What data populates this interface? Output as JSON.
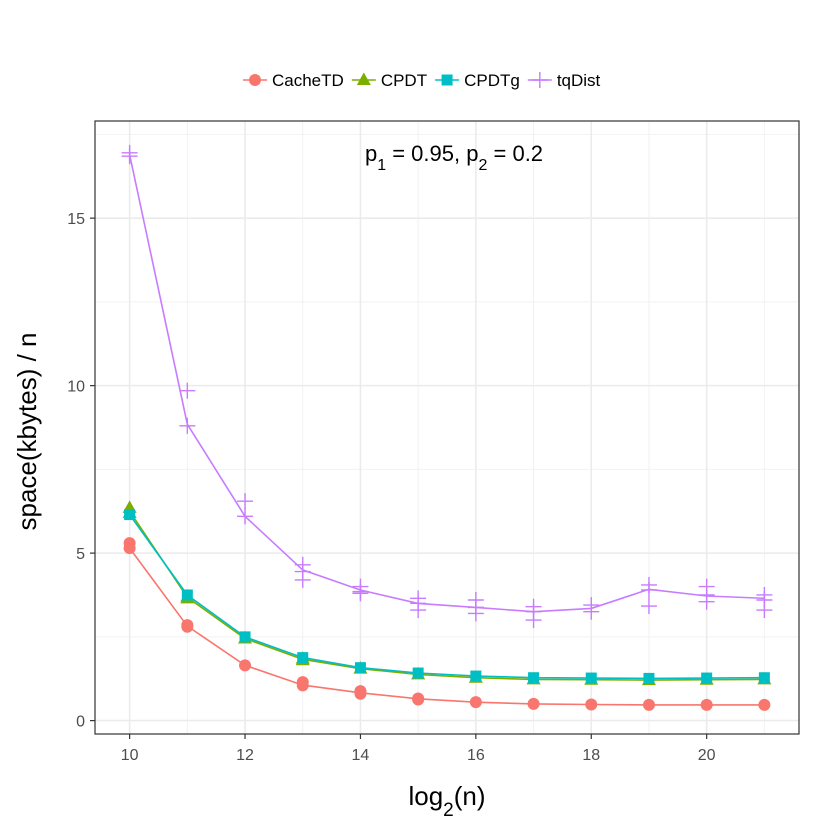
{
  "chart_data": {
    "type": "line",
    "annotation": {
      "p1_label": "p",
      "p1_sub": "1",
      "p1_value": " = 0.95, ",
      "p2_label": "p",
      "p2_sub": "2",
      "p2_value": " = 0.2"
    },
    "xlabel": {
      "base": "log",
      "sub": "2",
      "rest": "(n)"
    },
    "ylabel": "space(kbytes) / n",
    "xlim": [
      9.4,
      21.6
    ],
    "ylim": [
      -0.4,
      17.9
    ],
    "xticks": [
      10,
      12,
      14,
      16,
      18,
      20
    ],
    "yticks": [
      0,
      5,
      10,
      15
    ],
    "grid": true,
    "legend_position": "top",
    "series": [
      {
        "name": "CacheTD",
        "color": "#F8766D",
        "marker": "circle",
        "x": [
          10,
          11,
          12,
          13,
          14,
          15,
          16,
          17,
          18,
          19,
          20,
          21
        ],
        "mean": [
          5.15,
          2.82,
          1.65,
          1.06,
          0.83,
          0.65,
          0.55,
          0.5,
          0.48,
          0.47,
          0.47,
          0.47
        ],
        "points": [
          [
            10,
            5.3
          ],
          [
            10,
            5.15
          ],
          [
            11,
            2.85
          ],
          [
            11,
            2.8
          ],
          [
            12,
            1.65
          ],
          [
            13,
            1.15
          ],
          [
            13,
            1.05
          ],
          [
            14,
            0.88
          ],
          [
            14,
            0.8
          ],
          [
            15,
            0.66
          ],
          [
            15,
            0.63
          ],
          [
            16,
            0.55
          ],
          [
            17,
            0.5
          ],
          [
            18,
            0.48
          ],
          [
            19,
            0.47
          ],
          [
            20,
            0.47
          ],
          [
            21,
            0.47
          ]
        ]
      },
      {
        "name": "CPDT",
        "color": "#7CAE00",
        "marker": "triangle",
        "x": [
          10,
          11,
          12,
          13,
          14,
          15,
          16,
          17,
          18,
          19,
          20,
          21
        ],
        "mean": [
          6.25,
          3.68,
          2.45,
          1.83,
          1.55,
          1.38,
          1.28,
          1.23,
          1.22,
          1.21,
          1.22,
          1.23
        ],
        "points": [
          [
            10,
            6.35
          ],
          [
            10,
            6.2
          ],
          [
            11,
            3.7
          ],
          [
            11,
            3.65
          ],
          [
            12,
            2.45
          ],
          [
            13,
            1.85
          ],
          [
            13,
            1.8
          ],
          [
            14,
            1.55
          ],
          [
            15,
            1.38
          ],
          [
            16,
            1.28
          ],
          [
            17,
            1.23
          ],
          [
            18,
            1.22
          ],
          [
            19,
            1.21
          ],
          [
            20,
            1.22
          ],
          [
            21,
            1.23
          ]
        ]
      },
      {
        "name": "CPDTg",
        "color": "#00BFC4",
        "marker": "square",
        "x": [
          10,
          11,
          12,
          13,
          14,
          15,
          16,
          17,
          18,
          19,
          20,
          21
        ],
        "mean": [
          6.15,
          3.75,
          2.5,
          1.88,
          1.58,
          1.42,
          1.33,
          1.28,
          1.27,
          1.26,
          1.27,
          1.28
        ],
        "points": [
          [
            10,
            6.15
          ],
          [
            11,
            3.75
          ],
          [
            12,
            2.5
          ],
          [
            13,
            1.88
          ],
          [
            14,
            1.58
          ],
          [
            15,
            1.42
          ],
          [
            16,
            1.33
          ],
          [
            17,
            1.28
          ],
          [
            18,
            1.27
          ],
          [
            19,
            1.26
          ],
          [
            20,
            1.27
          ],
          [
            21,
            1.28
          ]
        ]
      },
      {
        "name": "tqDist",
        "color": "#C77CFF",
        "marker": "plus",
        "x": [
          10,
          11,
          12,
          13,
          14,
          15,
          16,
          17,
          18,
          19,
          20,
          21
        ],
        "mean": [
          16.9,
          8.85,
          6.1,
          4.5,
          3.9,
          3.5,
          3.38,
          3.25,
          3.35,
          3.92,
          3.72,
          3.65
        ],
        "points": [
          [
            10,
            16.95
          ],
          [
            10,
            16.85
          ],
          [
            11,
            9.85
          ],
          [
            11,
            8.8
          ],
          [
            12,
            6.55
          ],
          [
            12,
            6.1
          ],
          [
            13,
            4.65
          ],
          [
            13,
            4.45
          ],
          [
            13,
            4.2
          ],
          [
            14,
            4.0
          ],
          [
            14,
            3.85
          ],
          [
            14,
            3.8
          ],
          [
            15,
            3.65
          ],
          [
            15,
            3.5
          ],
          [
            15,
            3.3
          ],
          [
            16,
            3.6
          ],
          [
            16,
            3.38
          ],
          [
            16,
            3.2
          ],
          [
            17,
            3.4
          ],
          [
            17,
            3.25
          ],
          [
            17,
            3.0
          ],
          [
            18,
            3.45
          ],
          [
            18,
            3.25
          ],
          [
            19,
            4.05
          ],
          [
            19,
            3.9
          ],
          [
            19,
            3.42
          ],
          [
            20,
            4.0
          ],
          [
            20,
            3.75
          ],
          [
            20,
            3.55
          ],
          [
            21,
            3.75
          ],
          [
            21,
            3.6
          ],
          [
            21,
            3.3
          ]
        ]
      }
    ]
  }
}
